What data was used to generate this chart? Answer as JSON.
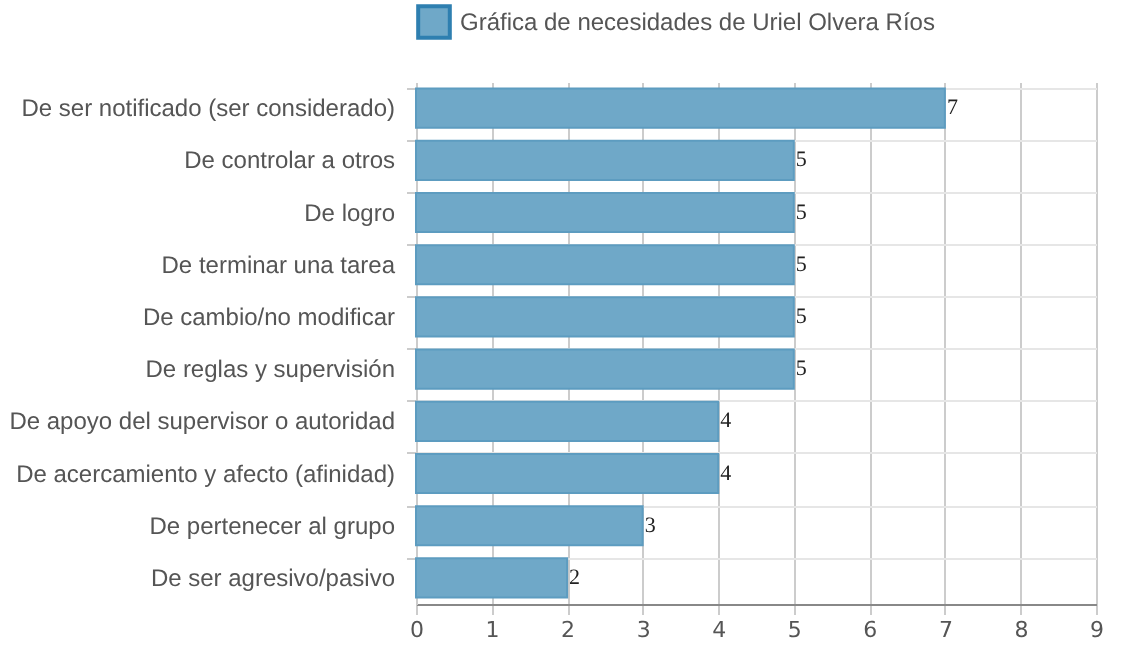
{
  "chart_data": {
    "type": "bar",
    "orientation": "horizontal",
    "categories": [
      "De ser notificado (ser considerado)",
      "De controlar a otros",
      "De logro",
      "De terminar una tarea",
      "De cambio/no modificar",
      "De reglas y supervisión",
      "De apoyo del supervisor o autoridad",
      "De acercamiento y afecto (afinidad)",
      "De pertenecer al grupo",
      "De ser agresivo/pasivo"
    ],
    "series": [
      {
        "name": "Gráfica de necesidades de Uriel Olvera Ríos",
        "color": "#6fa8c8",
        "values": [
          7,
          5,
          5,
          5,
          5,
          5,
          4,
          4,
          3,
          2
        ]
      }
    ],
    "xlim": [
      0,
      9
    ],
    "xticks": [
      0,
      1,
      2,
      3,
      4,
      5,
      6,
      7,
      8,
      9
    ],
    "grid": true,
    "legend": "top",
    "data_labels": true
  }
}
